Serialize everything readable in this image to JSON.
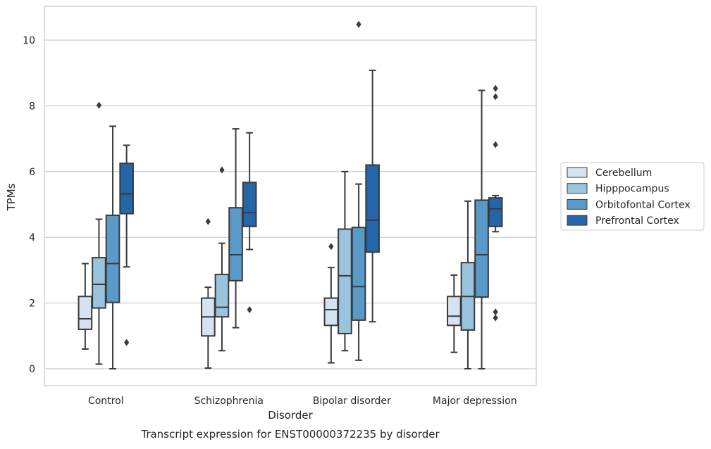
{
  "chart_data": {
    "type": "box",
    "title": "",
    "caption": "Transcript expression for ENST00000372235 by disorder",
    "xlabel": "Disorder",
    "ylabel": "TPMs",
    "ylim": [
      -0.5,
      11.0
    ],
    "yticks": [
      0,
      2,
      4,
      6,
      8,
      10
    ],
    "grid": "horizontal",
    "legend_position": "right",
    "categories": [
      "Control",
      "Schizophrenia",
      "Bipolar disorder",
      "Major depression"
    ],
    "series": [
      {
        "name": "Cerebellum",
        "color": "#d4e2f1",
        "boxes": [
          {
            "whisker_low": 0.6,
            "q1": 1.2,
            "median": 1.52,
            "q3": 2.2,
            "whisker_high": 3.2,
            "outliers": []
          },
          {
            "whisker_low": 0.02,
            "q1": 1.0,
            "median": 1.58,
            "q3": 2.15,
            "whisker_high": 2.48,
            "outliers": [
              4.48
            ]
          },
          {
            "whisker_low": 0.18,
            "q1": 1.32,
            "median": 1.8,
            "q3": 2.15,
            "whisker_high": 3.08,
            "outliers": [
              3.72
            ]
          },
          {
            "whisker_low": 0.5,
            "q1": 1.32,
            "median": 1.6,
            "q3": 2.2,
            "whisker_high": 2.85,
            "outliers": []
          }
        ]
      },
      {
        "name": "Hipppocampus",
        "color": "#9ac3de",
        "boxes": [
          {
            "whisker_low": 0.14,
            "q1": 1.85,
            "median": 2.57,
            "q3": 3.38,
            "whisker_high": 4.55,
            "outliers": [
              8.02
            ]
          },
          {
            "whisker_low": 0.55,
            "q1": 1.58,
            "median": 1.87,
            "q3": 2.87,
            "whisker_high": 3.82,
            "outliers": [
              6.05
            ]
          },
          {
            "whisker_low": 0.55,
            "q1": 1.07,
            "median": 2.83,
            "q3": 4.25,
            "whisker_high": 6.0,
            "outliers": []
          },
          {
            "whisker_low": 0.0,
            "q1": 1.18,
            "median": 2.2,
            "q3": 3.23,
            "whisker_high": 5.1,
            "outliers": []
          }
        ]
      },
      {
        "name": "Orbitofontal Cortex",
        "color": "#5a9ac8",
        "boxes": [
          {
            "whisker_low": 0.0,
            "q1": 2.02,
            "median": 3.2,
            "q3": 4.67,
            "whisker_high": 7.38,
            "outliers": []
          },
          {
            "whisker_low": 1.25,
            "q1": 2.68,
            "median": 3.47,
            "q3": 4.9,
            "whisker_high": 7.3,
            "outliers": []
          },
          {
            "whisker_low": 0.26,
            "q1": 1.48,
            "median": 2.5,
            "q3": 4.3,
            "whisker_high": 5.62,
            "outliers": [
              10.48
            ]
          },
          {
            "whisker_low": 0.0,
            "q1": 2.18,
            "median": 3.47,
            "q3": 5.13,
            "whisker_high": 8.47,
            "outliers": []
          }
        ]
      },
      {
        "name": "Prefrontal Cortex",
        "color": "#2566a8",
        "boxes": [
          {
            "whisker_low": 3.1,
            "q1": 4.72,
            "median": 5.32,
            "q3": 6.25,
            "whisker_high": 6.8,
            "outliers": [
              0.8
            ]
          },
          {
            "whisker_low": 3.63,
            "q1": 4.33,
            "median": 4.75,
            "q3": 5.67,
            "whisker_high": 7.18,
            "outliers": [
              1.8
            ]
          },
          {
            "whisker_low": 1.43,
            "q1": 3.55,
            "median": 4.52,
            "q3": 6.2,
            "whisker_high": 9.08,
            "outliers": []
          },
          {
            "whisker_low": 4.17,
            "q1": 4.33,
            "median": 4.87,
            "q3": 5.2,
            "whisker_high": 5.27,
            "outliers": [
              1.55,
              1.73,
              6.82,
              8.28,
              8.53
            ]
          }
        ]
      }
    ]
  }
}
